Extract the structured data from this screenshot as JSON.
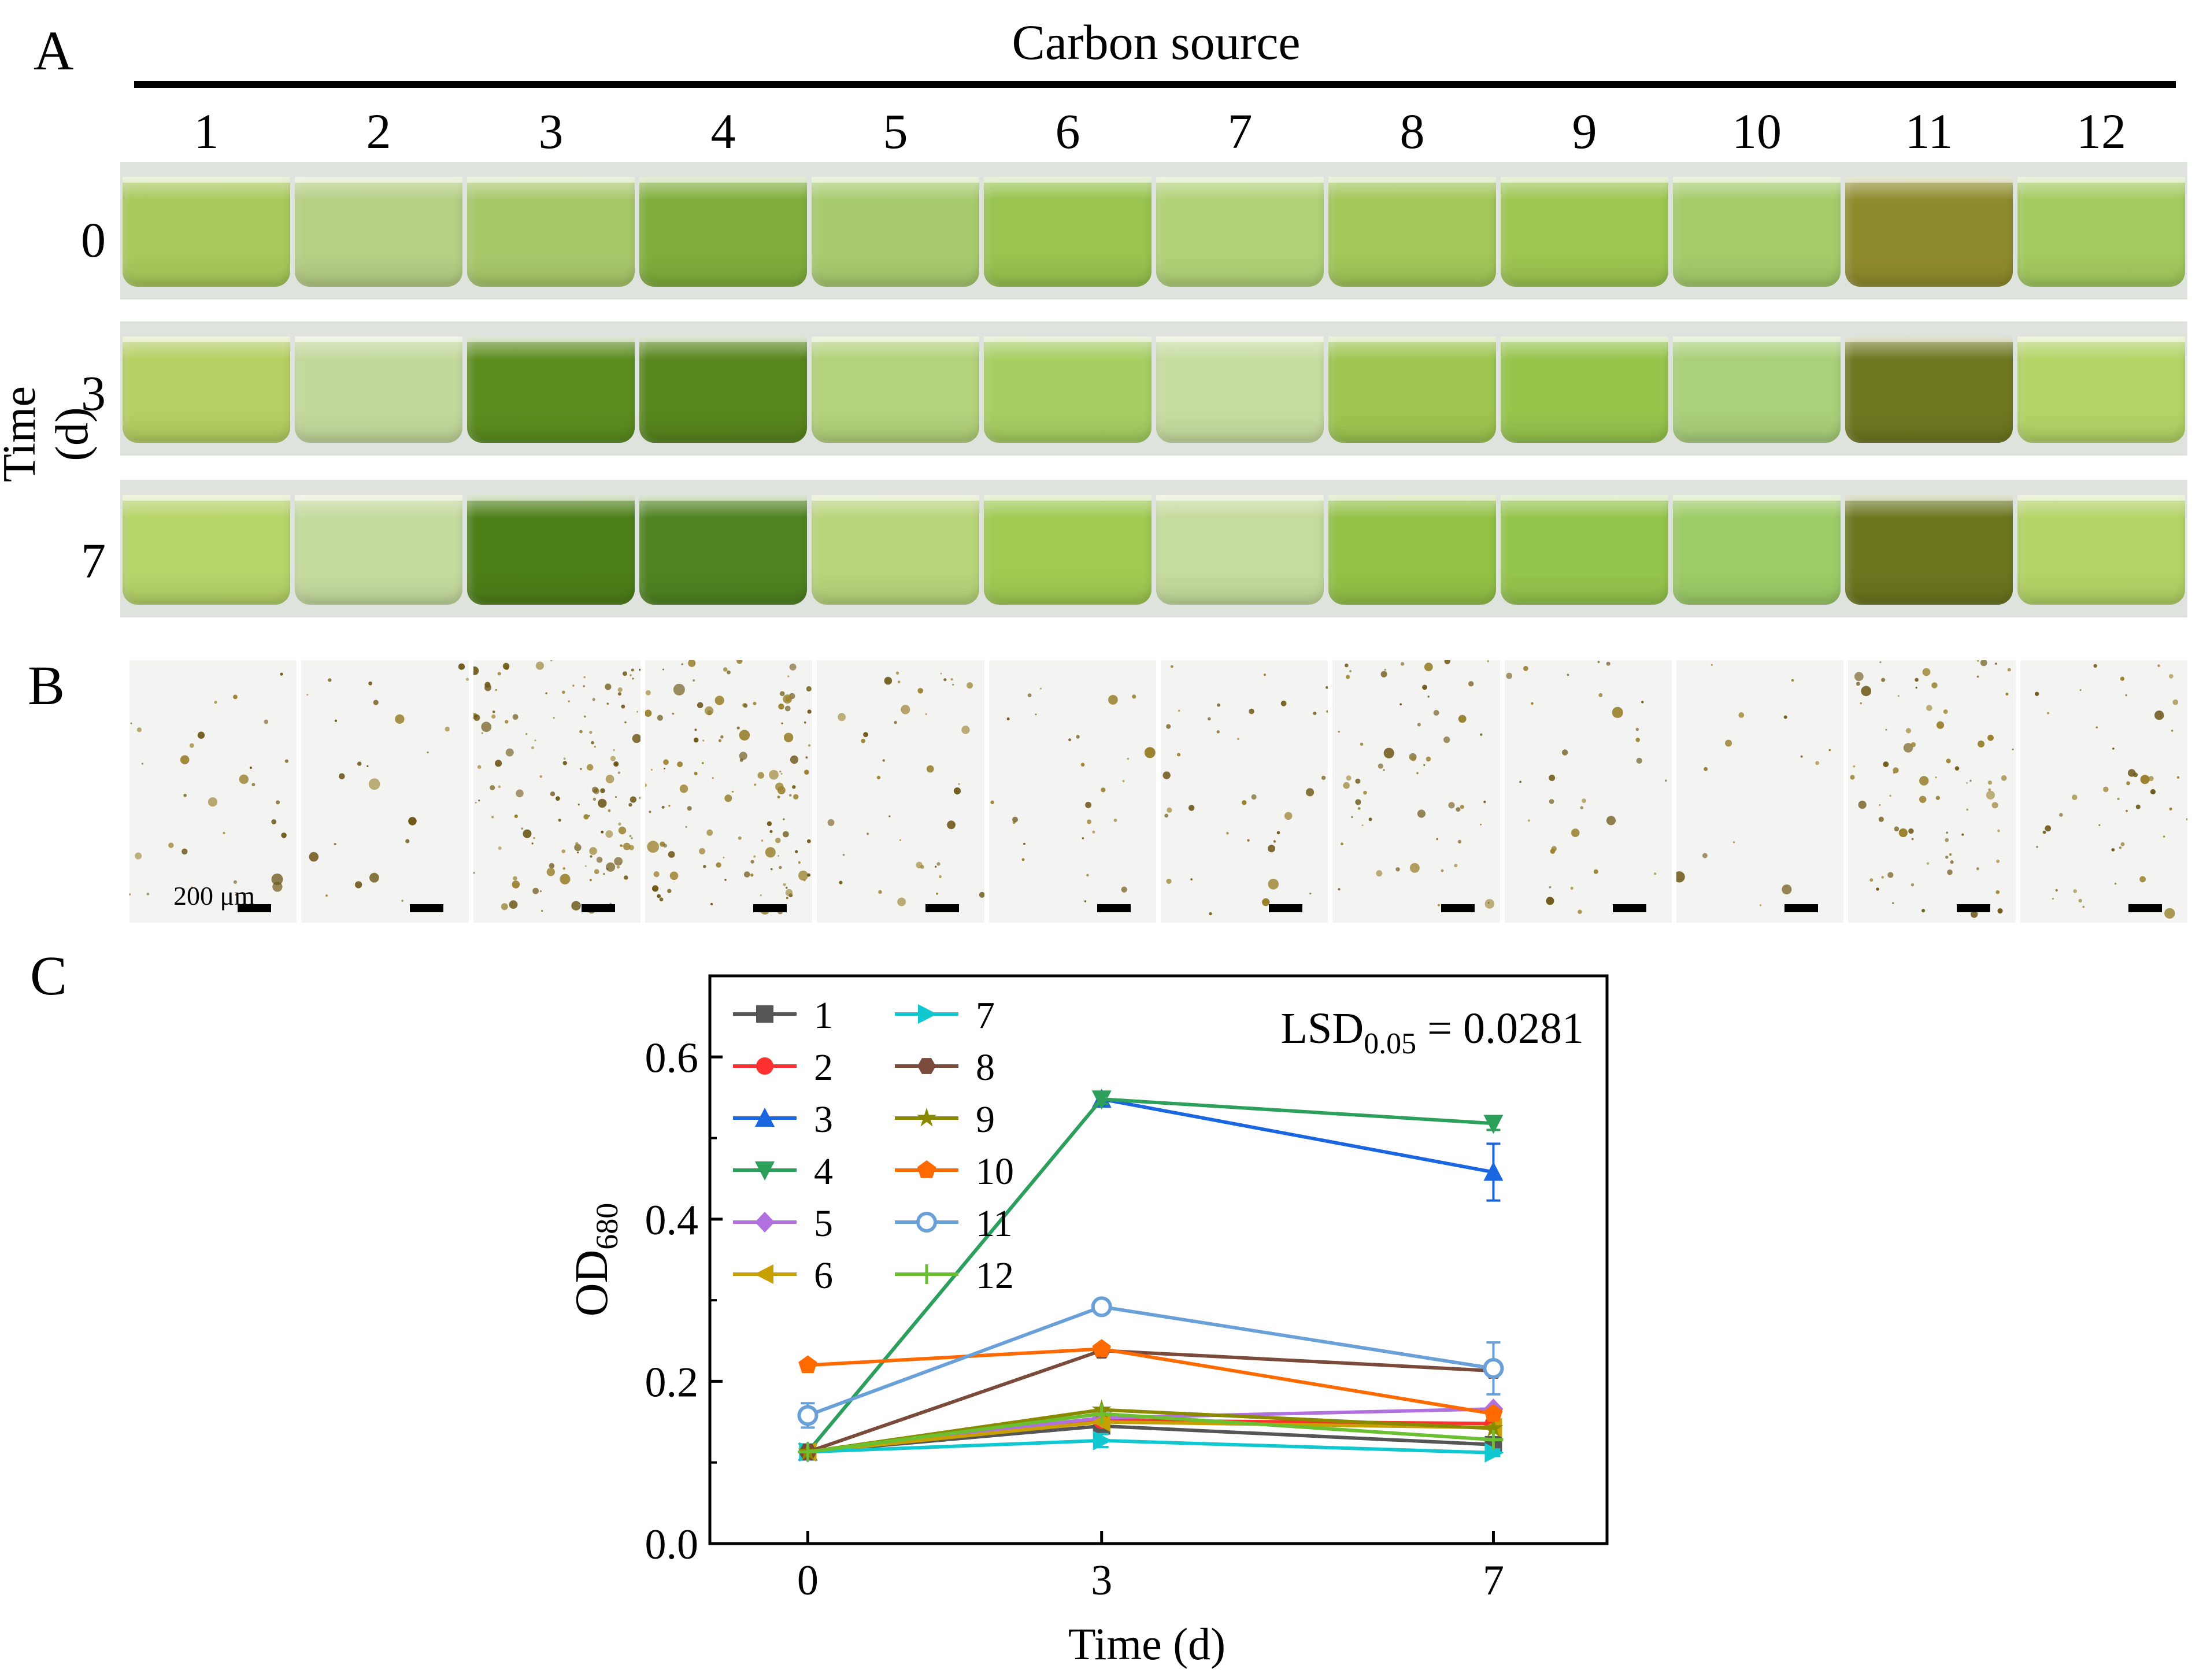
{
  "panels": {
    "a": "A",
    "b": "B",
    "c": "C"
  },
  "panel_a": {
    "header": "Carbon source",
    "columns": [
      "1",
      "2",
      "3",
      "4",
      "5",
      "6",
      "7",
      "8",
      "9",
      "10",
      "11",
      "12"
    ],
    "time_axis_label": "Time (d)",
    "rows": [
      {
        "label": "0",
        "colors": [
          "#a9c95a",
          "#b6cf84",
          "#a9c86a",
          "#7fae3b",
          "#a8cb6e",
          "#98c44f",
          "#b2d276",
          "#a3c758",
          "#9dc650",
          "#a4cc6a",
          "#8f8b2c",
          "#a3cb5e"
        ]
      },
      {
        "label": "3",
        "colors": [
          "#b5d062",
          "#c3d99c",
          "#5c8d1f",
          "#57861d",
          "#b3d27a",
          "#a6cf62",
          "#c7dda0",
          "#9fc650",
          "#96c54c",
          "#a9d07a",
          "#6f7720",
          "#b4d466"
        ]
      },
      {
        "label": "7",
        "colors": [
          "#b6d468",
          "#c5db9e",
          "#4d7f18",
          "#4f8320",
          "#b9d57a",
          "#9fcb52",
          "#c5dc9c",
          "#93c246",
          "#94c54c",
          "#9ccc66",
          "#6b761f",
          "#b4d466"
        ]
      }
    ]
  },
  "panel_b": {
    "scale_label": "200 μm",
    "density": [
      30,
      22,
      130,
      120,
      38,
      26,
      34,
      55,
      30,
      14,
      75,
      45
    ]
  },
  "chart_data": {
    "type": "line",
    "xlabel": "Time (d)",
    "ylabel": "OD",
    "ylabel_sub": "680",
    "x": [
      0,
      3,
      7
    ],
    "x_ticks": [
      "0",
      "3",
      "7"
    ],
    "y_ticks": [
      "0.0",
      "0.2",
      "0.4",
      "0.6"
    ],
    "ylim": [
      0.0,
      0.7
    ],
    "annotation": {
      "main": "LSD",
      "sub": "0.05",
      "rest": " = 0.0281"
    },
    "series": [
      {
        "name": "1",
        "color": "#555555",
        "marker": "square",
        "values": [
          0.113,
          0.145,
          0.122
        ]
      },
      {
        "name": "2",
        "color": "#ff3030",
        "marker": "circle",
        "values": [
          0.113,
          0.152,
          0.148
        ]
      },
      {
        "name": "3",
        "color": "#1a66e0",
        "marker": "triangle-up",
        "values": [
          0.113,
          0.548,
          0.458
        ],
        "errors": [
          0.004,
          0.006,
          0.035
        ]
      },
      {
        "name": "4",
        "color": "#2ca05a",
        "marker": "triangle-down",
        "values": [
          0.113,
          0.548,
          0.518
        ],
        "errors": [
          0.004,
          0.006,
          0.008
        ]
      },
      {
        "name": "5",
        "color": "#b070e0",
        "marker": "diamond",
        "values": [
          0.113,
          0.155,
          0.166
        ]
      },
      {
        "name": "6",
        "color": "#c8a000",
        "marker": "triangle-left",
        "values": [
          0.113,
          0.15,
          0.143
        ]
      },
      {
        "name": "7",
        "color": "#12c8d0",
        "marker": "triangle-right",
        "values": [
          0.113,
          0.127,
          0.112
        ],
        "errors": [
          0.003,
          0.008,
          0.004
        ]
      },
      {
        "name": "8",
        "color": "#7a4a3a",
        "marker": "hexagon",
        "values": [
          0.113,
          0.238,
          0.213
        ]
      },
      {
        "name": "9",
        "color": "#8a8a00",
        "marker": "star",
        "values": [
          0.113,
          0.165,
          0.142
        ]
      },
      {
        "name": "10",
        "color": "#ff6a00",
        "marker": "pentagon",
        "values": [
          0.22,
          0.24,
          0.16
        ]
      },
      {
        "name": "11",
        "color": "#6aa0d8",
        "marker": "circle-half",
        "values": [
          0.158,
          0.292,
          0.216
        ],
        "errors": [
          0.015,
          0.004,
          0.032
        ]
      },
      {
        "name": "12",
        "color": "#6ac030",
        "marker": "plus",
        "values": [
          0.113,
          0.16,
          0.128
        ]
      }
    ]
  }
}
